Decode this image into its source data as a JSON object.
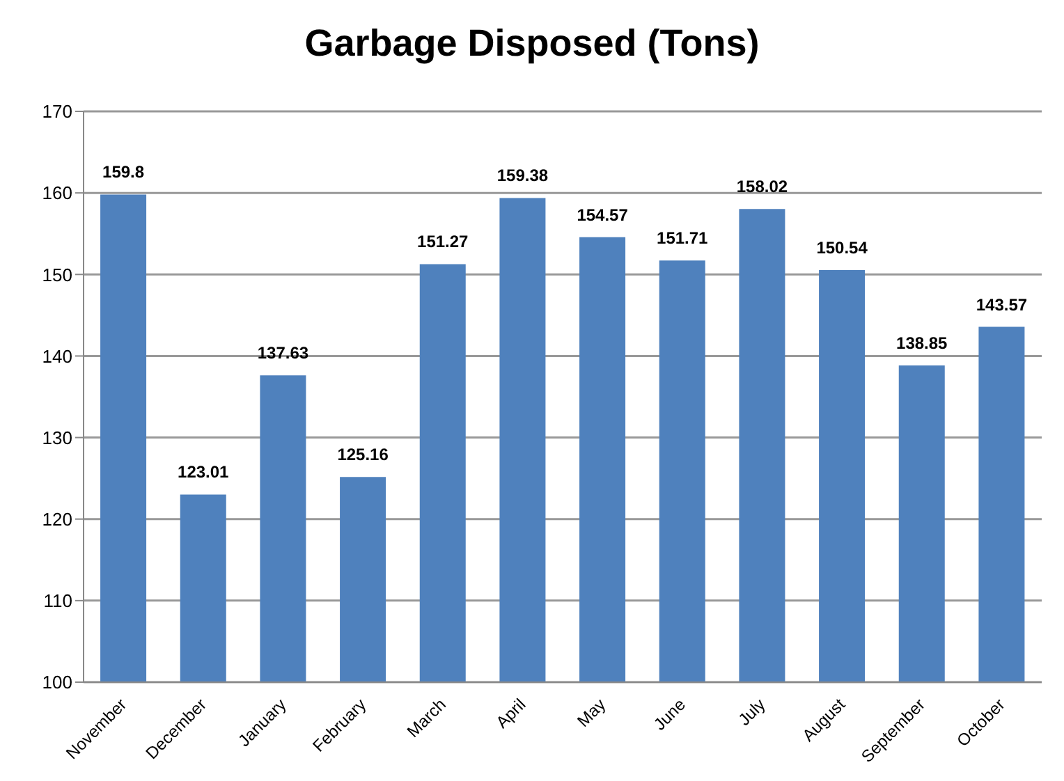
{
  "chart_data": {
    "type": "bar",
    "title": "Garbage Disposed (Tons)",
    "categories": [
      "November",
      "December",
      "January",
      "February",
      "March",
      "April",
      "May",
      "June",
      "July",
      "August",
      "September",
      "October"
    ],
    "values": [
      159.8,
      123.01,
      137.63,
      125.16,
      151.27,
      159.38,
      154.57,
      151.71,
      158.02,
      150.54,
      138.85,
      143.57
    ],
    "color": "#4f81bd",
    "ylim": [
      100,
      170
    ],
    "yticks": [
      100,
      110,
      120,
      130,
      140,
      150,
      160,
      170
    ],
    "grid": "y",
    "data_labels": true
  }
}
